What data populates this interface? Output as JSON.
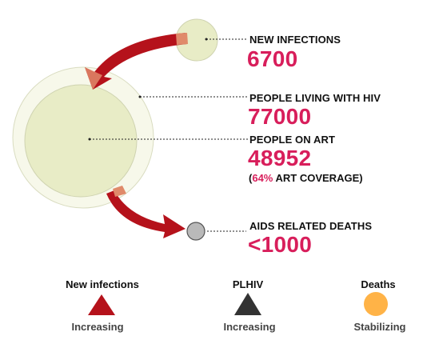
{
  "nodes": {
    "new_infections": {
      "title": "NEW INFECTIONS",
      "value": "6700"
    },
    "plhiv": {
      "title": "PEOPLE LIVING WITH HIV",
      "value": "77000"
    },
    "on_art": {
      "title": "PEOPLE ON ART",
      "value": "48952",
      "coverage_open": "(",
      "coverage_pct": "64%",
      "coverage_rest": " ART COVERAGE)"
    },
    "deaths": {
      "title": "AIDS RELATED DEATHS",
      "value": "<1000"
    }
  },
  "legend": [
    {
      "title": "New infections",
      "status": "Increasing",
      "symbol": "triangle-up-icon",
      "color": "#b5121b"
    },
    {
      "title": "PLHIV",
      "status": "Increasing",
      "symbol": "triangle-up-icon",
      "color": "#333333"
    },
    {
      "title": "Deaths",
      "status": "Stabilizing",
      "symbol": "circle-icon",
      "color": "#ffb347"
    }
  ],
  "colors": {
    "accent": "#d81e5b",
    "arrow": "#b5121b",
    "circle_fill": "#e8ecc6",
    "circle_outer_fill": "#f7f8ea",
    "death_circle": "#b9b9b9"
  }
}
